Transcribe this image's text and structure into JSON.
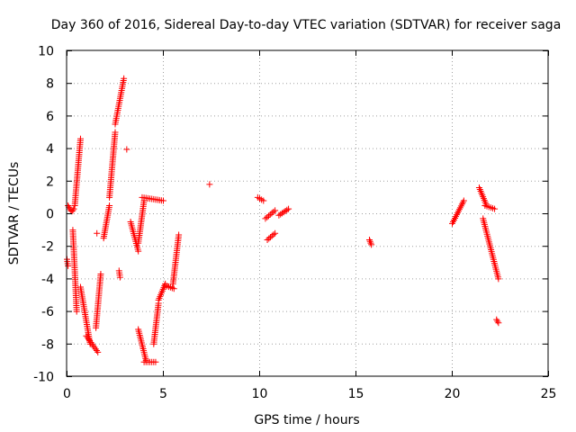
{
  "chart_data": {
    "type": "scatter",
    "title": "Day 360 of 2016, Sidereal Day-to-day VTEC variation (SDTVAR) for receiver saga",
    "xlabel": "GPS time / hours",
    "ylabel": "SDTVAR / TECUs",
    "xlim": [
      0,
      25
    ],
    "ylim": [
      -10,
      10
    ],
    "xticks": [
      0,
      5,
      10,
      15,
      20,
      25
    ],
    "xtick_labels": [
      "0",
      "5",
      "10",
      "15",
      "20",
      "25"
    ],
    "yticks": [
      -10,
      -8,
      -6,
      -4,
      -2,
      0,
      2,
      4,
      6,
      8,
      10
    ],
    "ytick_labels": [
      "-10",
      "-8",
      "-6",
      "-4",
      "-2",
      "0",
      "2",
      "4",
      "6",
      "8",
      "10"
    ],
    "grid": true,
    "marker": "+",
    "color": "#ff0000",
    "segments": [
      {
        "x": [
          0.0,
          0.05
        ],
        "y": [
          -2.8,
          -3.2
        ]
      },
      {
        "x": [
          0.05,
          0.1,
          0.15,
          0.2,
          0.25,
          0.3,
          0.35,
          0.4
        ],
        "y": [
          0.5,
          0.4,
          0.3,
          0.2,
          0.15,
          0.2,
          0.3,
          0.5
        ]
      },
      {
        "x": [
          0.3,
          0.5
        ],
        "y": [
          -1.0,
          -6.0
        ]
      },
      {
        "x": [
          0.4,
          0.7
        ],
        "y": [
          0.5,
          4.6
        ]
      },
      {
        "x": [
          0.7,
          1.2
        ],
        "y": [
          -4.5,
          -8.0
        ]
      },
      {
        "x": [
          1.0,
          1.6
        ],
        "y": [
          -7.5,
          -8.5
        ]
      },
      {
        "x": [
          1.5,
          1.75
        ],
        "y": [
          -7.0,
          -3.7
        ]
      },
      {
        "x": [
          1.55
        ],
        "y": [
          -1.2
        ]
      },
      {
        "x": [
          1.9,
          2.2
        ],
        "y": [
          -1.5,
          0.5
        ]
      },
      {
        "x": [
          2.2,
          2.5
        ],
        "y": [
          1.0,
          5.0
        ]
      },
      {
        "x": [
          2.5,
          2.95
        ],
        "y": [
          5.5,
          8.3
        ]
      },
      {
        "x": [
          2.7,
          2.75
        ],
        "y": [
          -3.5,
          -3.9
        ]
      },
      {
        "x": [
          3.1
        ],
        "y": [
          3.95
        ]
      },
      {
        "x": [
          3.3,
          3.7
        ],
        "y": [
          -0.5,
          -2.3
        ]
      },
      {
        "x": [
          3.7,
          4.0
        ],
        "y": [
          -1.8,
          0.8
        ]
      },
      {
        "x": [
          3.9,
          5.0
        ],
        "y": [
          1.0,
          0.8
        ]
      },
      {
        "x": [
          3.7,
          4.1
        ],
        "y": [
          -7.1,
          -9.0
        ]
      },
      {
        "x": [
          4.0,
          4.6
        ],
        "y": [
          -9.1,
          -9.1
        ]
      },
      {
        "x": [
          4.5,
          4.75
        ],
        "y": [
          -8.0,
          -5.5
        ]
      },
      {
        "x": [
          4.75,
          5.1
        ],
        "y": [
          -5.3,
          -4.3
        ]
      },
      {
        "x": [
          5.1,
          5.55
        ],
        "y": [
          -4.4,
          -4.6
        ]
      },
      {
        "x": [
          5.5,
          5.8
        ],
        "y": [
          -4.3,
          -1.3
        ]
      },
      {
        "x": [
          7.4
        ],
        "y": [
          1.8
        ]
      },
      {
        "x": [
          9.9,
          10.2
        ],
        "y": [
          1.0,
          0.8
        ]
      },
      {
        "x": [
          10.3,
          10.8
        ],
        "y": [
          -0.3,
          0.2
        ]
      },
      {
        "x": [
          10.4,
          10.8
        ],
        "y": [
          -1.6,
          -1.2
        ]
      },
      {
        "x": [
          11.0,
          11.5
        ],
        "y": [
          -0.1,
          0.3
        ]
      },
      {
        "x": [
          15.7,
          15.8
        ],
        "y": [
          -1.6,
          -1.9
        ]
      },
      {
        "x": [
          20.0,
          20.6
        ],
        "y": [
          -0.6,
          0.8
        ]
      },
      {
        "x": [
          21.4,
          21.75
        ],
        "y": [
          1.6,
          0.6
        ]
      },
      {
        "x": [
          21.7,
          22.2
        ],
        "y": [
          0.5,
          0.3
        ]
      },
      {
        "x": [
          21.6,
          22.4
        ],
        "y": [
          -0.3,
          -4.0
        ]
      },
      {
        "x": [
          22.3,
          22.4
        ],
        "y": [
          -6.5,
          -6.7
        ]
      }
    ]
  }
}
